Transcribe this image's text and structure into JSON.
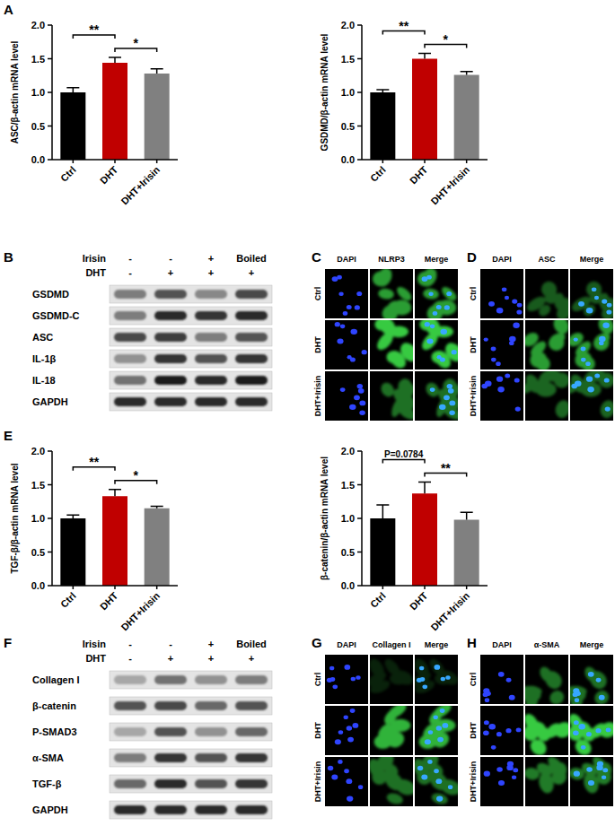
{
  "panel_labels": [
    "A",
    "B",
    "C",
    "D",
    "E",
    "F",
    "G",
    "H"
  ],
  "chart_data": [
    {
      "type": "bar",
      "ylabel": "ASC/β-actin mRNA level",
      "categories": [
        "Ctrl",
        "DHT",
        "DHT+Irisin"
      ],
      "values": [
        1.0,
        1.44,
        1.28
      ],
      "errors": [
        0.07,
        0.08,
        0.07
      ],
      "colors": [
        "#000000",
        "#c00000",
        "#808080"
      ],
      "ylim": [
        0,
        2
      ],
      "yticks": [
        {
          "value": 0,
          "label": "0.0"
        },
        {
          "value": 0.5,
          "label": "0.5"
        },
        {
          "value": 1,
          "label": "1.0"
        },
        {
          "value": 1.5,
          "label": "1.5"
        },
        {
          "value": 2,
          "label": "2.0"
        }
      ],
      "annotations": [
        {
          "text": "**",
          "from": 0,
          "to": 1
        },
        {
          "text": "*",
          "from": 1,
          "to": 2
        }
      ]
    },
    {
      "type": "bar",
      "ylabel": "GSDMD/β-actin mRNA level",
      "categories": [
        "Ctrl",
        "DHT",
        "DHT+Irisin"
      ],
      "values": [
        1.0,
        1.5,
        1.26
      ],
      "errors": [
        0.04,
        0.08,
        0.05
      ],
      "colors": [
        "#000000",
        "#c00000",
        "#808080"
      ],
      "ylim": [
        0,
        2
      ],
      "yticks": [
        {
          "value": 0,
          "label": "0.0"
        },
        {
          "value": 0.5,
          "label": "0.5"
        },
        {
          "value": 1,
          "label": "1.0"
        },
        {
          "value": 1.5,
          "label": "1.5"
        },
        {
          "value": 2,
          "label": "2.0"
        }
      ],
      "annotations": [
        {
          "text": "**",
          "from": 0,
          "to": 1
        },
        {
          "text": "*",
          "from": 1,
          "to": 2
        }
      ]
    },
    {
      "type": "bar",
      "ylabel": "TGF-β/β-actin mRNA level",
      "categories": [
        "Ctrl",
        "DHT",
        "DHT+Irisin"
      ],
      "values": [
        1.0,
        1.33,
        1.15
      ],
      "errors": [
        0.05,
        0.1,
        0.03
      ],
      "colors": [
        "#000000",
        "#c00000",
        "#808080"
      ],
      "ylim": [
        0,
        2
      ],
      "yticks": [
        {
          "value": 0,
          "label": "0.0"
        },
        {
          "value": 0.5,
          "label": "0.5"
        },
        {
          "value": 1,
          "label": "1.0"
        },
        {
          "value": 1.5,
          "label": "1.5"
        },
        {
          "value": 2,
          "label": "2.0"
        }
      ],
      "annotations": [
        {
          "text": "**",
          "from": 0,
          "to": 1
        },
        {
          "text": "*",
          "from": 1,
          "to": 2
        }
      ]
    },
    {
      "type": "bar",
      "ylabel": "β-catenin/β-actin mRNA level",
      "categories": [
        "Ctrl",
        "DHT",
        "DHT+Irisin"
      ],
      "values": [
        1.0,
        1.37,
        0.98
      ],
      "errors": [
        0.2,
        0.17,
        0.11
      ],
      "colors": [
        "#000000",
        "#c00000",
        "#808080"
      ],
      "ylim": [
        0,
        2
      ],
      "yticks": [
        {
          "value": 0,
          "label": "0.0"
        },
        {
          "value": 0.5,
          "label": "0.5"
        },
        {
          "value": 1,
          "label": "1.0"
        },
        {
          "value": 1.5,
          "label": "1.5"
        },
        {
          "value": 2,
          "label": "2.0"
        }
      ],
      "annotations": [
        {
          "text": "P=0.0784",
          "from": 0,
          "to": 1
        },
        {
          "text": "**",
          "from": 1,
          "to": 2
        }
      ]
    }
  ],
  "blots": [
    {
      "header": [
        {
          "label": "Irisin",
          "lanes": [
            "-",
            "-",
            "+",
            "Boiled"
          ]
        },
        {
          "label": "DHT",
          "lanes": [
            "-",
            "+",
            "+",
            "+"
          ]
        }
      ],
      "rows": [
        {
          "label": "GSDMD",
          "values": [
            0.5,
            0.7,
            0.45,
            0.75
          ]
        },
        {
          "label": "GSDMD-C",
          "values": [
            0.5,
            0.9,
            0.85,
            0.9
          ]
        },
        {
          "label": "ASC",
          "values": [
            0.75,
            0.8,
            0.5,
            0.7
          ]
        },
        {
          "label": "IL-1β",
          "values": [
            0.4,
            0.85,
            0.7,
            0.85
          ]
        },
        {
          "label": "IL-18",
          "values": [
            0.55,
            0.95,
            0.9,
            0.95
          ]
        },
        {
          "label": "GAPDH",
          "values": [
            0.9,
            0.9,
            0.9,
            0.9
          ]
        }
      ]
    },
    {
      "header": [
        {
          "label": "Irisin",
          "lanes": [
            "-",
            "-",
            "+",
            "Boiled"
          ]
        },
        {
          "label": "DHT",
          "lanes": [
            "-",
            "+",
            "+",
            "+"
          ]
        }
      ],
      "rows": [
        {
          "label": "Collagen I",
          "values": [
            0.3,
            0.55,
            0.4,
            0.5
          ]
        },
        {
          "label": "β-catenin",
          "values": [
            0.7,
            0.75,
            0.6,
            0.7
          ]
        },
        {
          "label": "P-SMAD3",
          "values": [
            0.3,
            0.7,
            0.4,
            0.6
          ]
        },
        {
          "label": "α-SMA",
          "values": [
            0.5,
            0.85,
            0.7,
            0.85
          ]
        },
        {
          "label": "TGF-β",
          "values": [
            0.6,
            0.9,
            0.7,
            0.85
          ]
        },
        {
          "label": "GAPDH",
          "values": [
            0.9,
            0.9,
            0.9,
            0.9
          ]
        }
      ]
    }
  ],
  "images": [
    {
      "columns": [
        "DAPI",
        "NLRP3",
        "Merge"
      ],
      "rows": [
        "Ctrl",
        "DHT",
        "DHT+Irisin"
      ],
      "signal": [
        0.7,
        0.9,
        0.5
      ]
    },
    {
      "columns": [
        "DAPI",
        "ASC",
        "Merge"
      ],
      "rows": [
        "Ctrl",
        "DHT",
        "DHT+Irisin"
      ],
      "signal": [
        0.4,
        0.7,
        0.45
      ]
    },
    {
      "columns": [
        "DAPI",
        "Collagen I",
        "Merge"
      ],
      "rows": [
        "Ctrl",
        "DHT",
        "DHT+Irisin"
      ],
      "signal": [
        0.15,
        0.8,
        0.5
      ]
    },
    {
      "columns": [
        "DAPI",
        "α-SMA",
        "Merge"
      ],
      "rows": [
        "Ctrl",
        "DHT",
        "DHT+Irisin"
      ],
      "signal": [
        0.5,
        0.9,
        0.55
      ]
    }
  ]
}
